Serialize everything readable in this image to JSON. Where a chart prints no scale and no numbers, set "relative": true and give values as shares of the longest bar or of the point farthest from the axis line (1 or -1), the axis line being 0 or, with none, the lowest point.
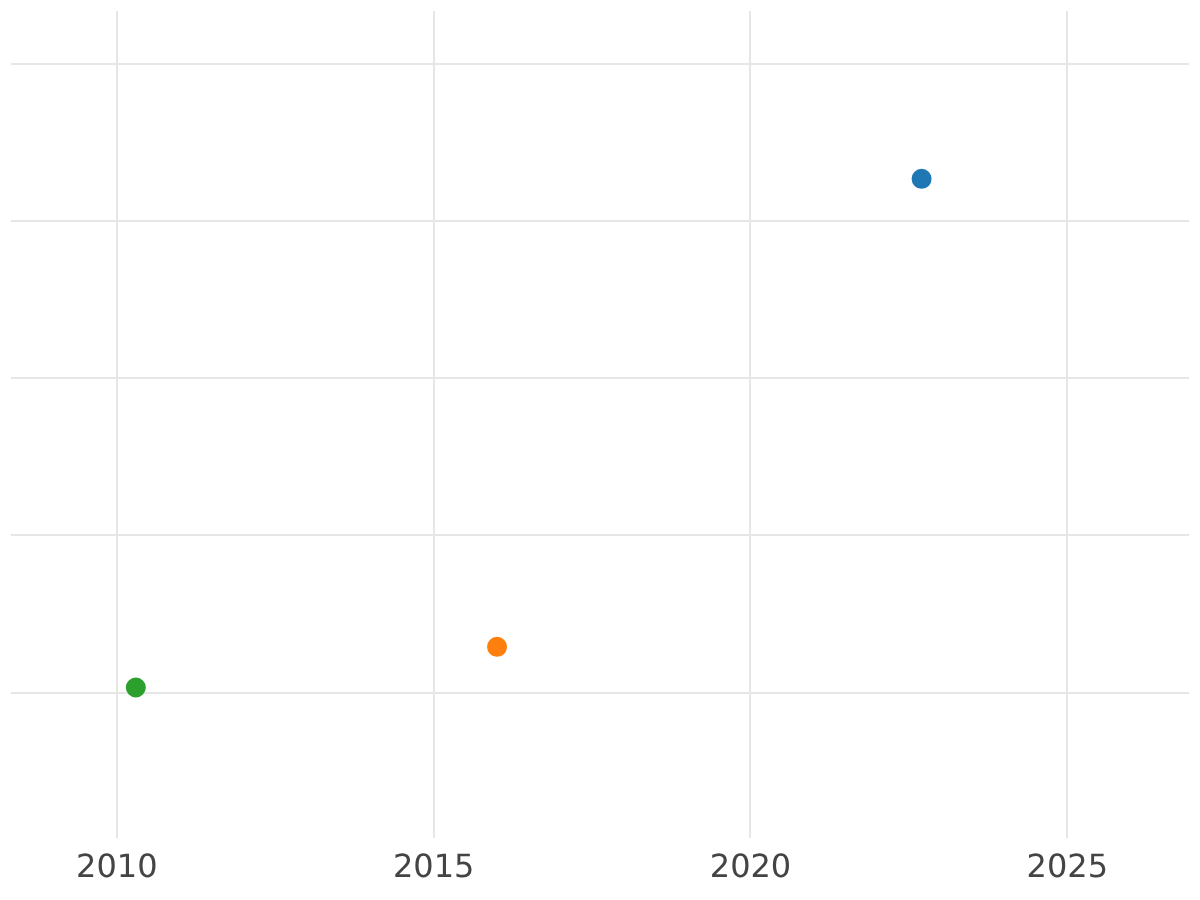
{
  "chart_data": {
    "type": "scatter",
    "relative": true,
    "x": [
      2022.7,
      2016.0,
      2010.3
    ],
    "values": [
      1,
      0.08,
      0
    ],
    "colors": [
      "#1f77b4",
      "#ff7f0e",
      "#2ca02c"
    ],
    "xlim": [
      2008.33,
      2026.92
    ],
    "xticks": [
      2010,
      2015,
      2020,
      2025
    ],
    "grid": true,
    "marker": "circle",
    "legend": false
  }
}
